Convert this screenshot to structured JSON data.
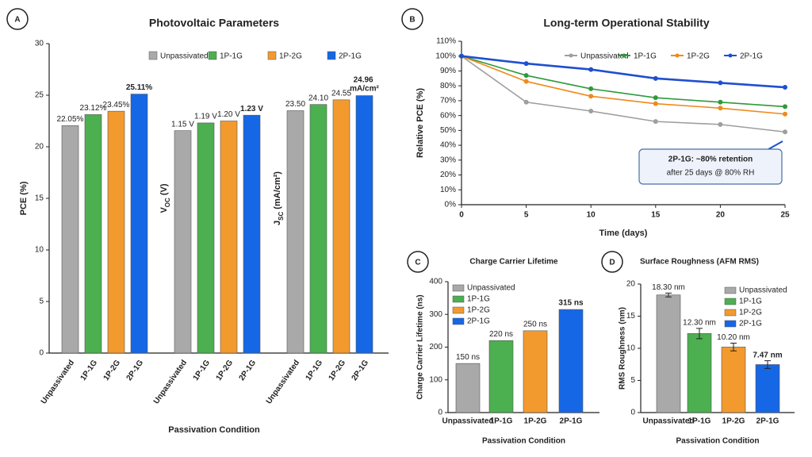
{
  "chart_data": [
    {
      "type": "grouped-bar",
      "label": "A",
      "title": "Photovoltaic Parameters",
      "x_label": "Passivation Condition",
      "categories": [
        "Unpassivated",
        "1P-1G",
        "1P-2G",
        "2P-1G"
      ],
      "colors": [
        "#a9a9a9",
        "#4caf50",
        "#f39a2e",
        "#1667e6"
      ],
      "legend": "top",
      "panels": [
        {
          "y_label": [
            "PCE (%)"
          ],
          "values": [
            22.05,
            23.12,
            23.45,
            25.11
          ],
          "value_labels": [
            "22.05%",
            "23.12%",
            "23.45%",
            "25.11%"
          ],
          "ylim": [
            0,
            30
          ],
          "yticks": [
            0,
            5,
            10,
            15,
            20,
            25,
            30
          ]
        },
        {
          "y_label": [
            "V",
            "OC",
            " (V)"
          ],
          "values": [
            1.15,
            1.19,
            1.2,
            1.23
          ],
          "value_labels": [
            "1.15 V",
            "1.19 V",
            "1.20 V",
            "1.23 V"
          ],
          "ylim": [
            0,
            1.6
          ]
        },
        {
          "y_label": [
            "J",
            "SC",
            " (mA/cm²)"
          ],
          "values": [
            23.5,
            24.1,
            24.55,
            24.96
          ],
          "value_labels": [
            "23.50",
            "24.10",
            "24.55",
            "24.96 mA/cm²"
          ],
          "ylim": [
            0,
            30
          ]
        }
      ]
    },
    {
      "type": "line",
      "label": "B",
      "title": "Long-term Operational Stability",
      "x_label": "Time (days)",
      "y_label": "Relative PCE (%)",
      "x": [
        0,
        5,
        10,
        15,
        20,
        25
      ],
      "xlim": [
        0,
        25
      ],
      "xticks": [
        0,
        5,
        10,
        15,
        20,
        25
      ],
      "ylim": [
        0,
        110
      ],
      "yticks": [
        {
          "value": 0,
          "label": "0%"
        },
        {
          "value": 10,
          "label": "10%"
        },
        {
          "value": 20,
          "label": "20%"
        },
        {
          "value": 30,
          "label": "30%"
        },
        {
          "value": 40,
          "label": "40%"
        },
        {
          "value": 50,
          "label": "50%"
        },
        {
          "value": 60,
          "label": "60%"
        },
        {
          "value": 70,
          "label": "70%"
        },
        {
          "value": 80,
          "label": "80%"
        },
        {
          "value": 90,
          "label": "90%"
        },
        {
          "value": 100,
          "label": "100%"
        },
        {
          "value": 110,
          "label": "110%"
        }
      ],
      "legend": "top",
      "series": [
        {
          "name": "Unpassivated",
          "color": "#9e9e9e",
          "values": [
            100,
            69,
            63,
            56,
            54,
            49
          ]
        },
        {
          "name": "1P-1G",
          "color": "#2e9a3a",
          "values": [
            100,
            87,
            78,
            72,
            69,
            66
          ]
        },
        {
          "name": "1P-2G",
          "color": "#ee8a1c",
          "values": [
            100,
            83,
            73,
            68,
            65,
            61
          ]
        },
        {
          "name": "2P-1G",
          "color": "#1f4fd0",
          "values": [
            100,
            95,
            91,
            85,
            82,
            79
          ]
        }
      ],
      "annotation": [
        "2P-1G: ~80% retention",
        "after 25 days @ 80% RH"
      ]
    },
    {
      "type": "bar",
      "label": "C",
      "title": "Charge Carrier Lifetime",
      "x_label": "Passivation Condition",
      "y_label": "Charge Carrier Lifetime (ns)",
      "categories": [
        "Unpassivated",
        "1P-1G",
        "1P-2G",
        "2P-1G"
      ],
      "colors": [
        "#a9a9a9",
        "#4caf50",
        "#f39a2e",
        "#1667e6"
      ],
      "values": [
        150,
        220,
        250,
        315
      ],
      "value_labels": [
        "150 ns",
        "220 ns",
        "250 ns",
        "315 ns"
      ],
      "ylim": [
        0,
        400
      ],
      "yticks": [
        0,
        100,
        200,
        300,
        400
      ],
      "legend": "upper left"
    },
    {
      "type": "bar",
      "label": "D",
      "title": "Surface Roughness (AFM RMS)",
      "x_label": "Passivation Condition",
      "y_label": "RMS Roughness (nm)",
      "categories": [
        "Unpassivated",
        "1P-1G",
        "1P-2G",
        "2P-1G"
      ],
      "colors": [
        "#a9a9a9",
        "#4caf50",
        "#f39a2e",
        "#1667e6"
      ],
      "values": [
        18.3,
        12.3,
        10.2,
        7.47
      ],
      "value_labels": [
        "18.30 nm",
        "12.30 nm",
        "10.20 nm",
        "7.47 nm"
      ],
      "errors": [
        0.3,
        0.8,
        0.6,
        0.6
      ],
      "ylim": [
        0,
        20
      ],
      "yticks": [
        0,
        5,
        10,
        15,
        20
      ],
      "legend": "upper right"
    }
  ]
}
